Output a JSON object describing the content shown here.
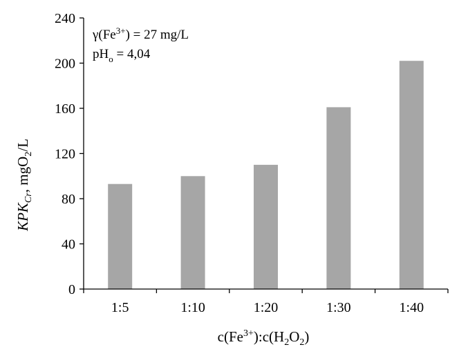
{
  "chart_data": {
    "type": "bar",
    "categories": [
      "1:5",
      "1:10",
      "1:20",
      "1:30",
      "1:40"
    ],
    "values": [
      93,
      100,
      110,
      161,
      202
    ],
    "ylim": [
      0,
      240
    ],
    "yticks": [
      0,
      40,
      80,
      120,
      160,
      200,
      240
    ],
    "bar_color": "#a6a6a6",
    "grid": false,
    "ylabel": {
      "italic": "KPK",
      "sub_italic": "Cr",
      "rest": ", mgO",
      "sub2": "2",
      "tail": "/L"
    },
    "xlabel": {
      "a": "c(Fe",
      "sup": "3+",
      "b": "):c(H",
      "sub1": "2",
      "c": "O",
      "sub2": "2",
      "d": ")"
    },
    "annotations": {
      "line1": {
        "a": "γ(Fe",
        "sup": "3+",
        "b": ") = 27 mg/L"
      },
      "line2": {
        "a": "pH",
        "sub": "o",
        "b": " = 4,04"
      }
    }
  }
}
